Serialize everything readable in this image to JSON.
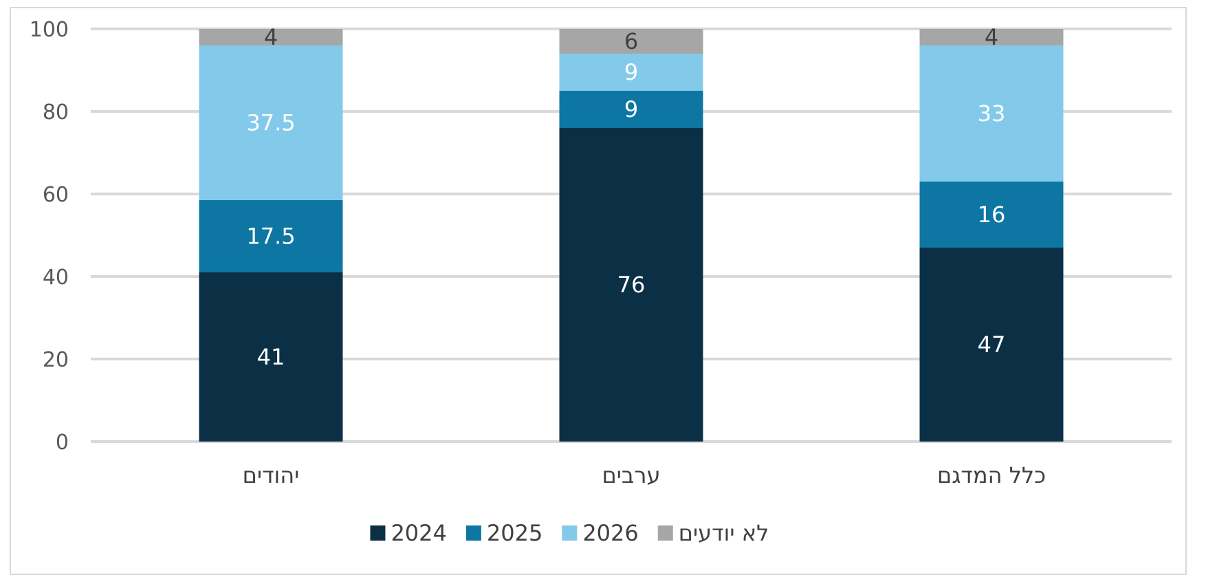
{
  "chart_data": {
    "type": "bar",
    "stacked": true,
    "categories": [
      "יהודים",
      "ערבים",
      "כלל המדגם"
    ],
    "series": [
      {
        "name": "2024",
        "values": [
          41,
          76,
          47
        ],
        "color": "#0b3045",
        "label_color": "#ffffff"
      },
      {
        "name": "2025",
        "values": [
          17.5,
          9,
          16
        ],
        "color": "#0e76a3",
        "label_color": "#ffffff"
      },
      {
        "name": "2026",
        "values": [
          37.5,
          9,
          33
        ],
        "color": "#83caea",
        "label_color": "#ffffff"
      },
      {
        "name": "לא יודעים",
        "values": [
          4,
          6,
          4
        ],
        "color": "#a6a6a6",
        "label_color": "#404040"
      }
    ],
    "yticks": [
      0,
      20,
      40,
      60,
      80,
      100
    ],
    "ylim": [
      0,
      100
    ],
    "grid": true,
    "grid_color": "#d9d9d9",
    "legend_position": "bottom"
  }
}
